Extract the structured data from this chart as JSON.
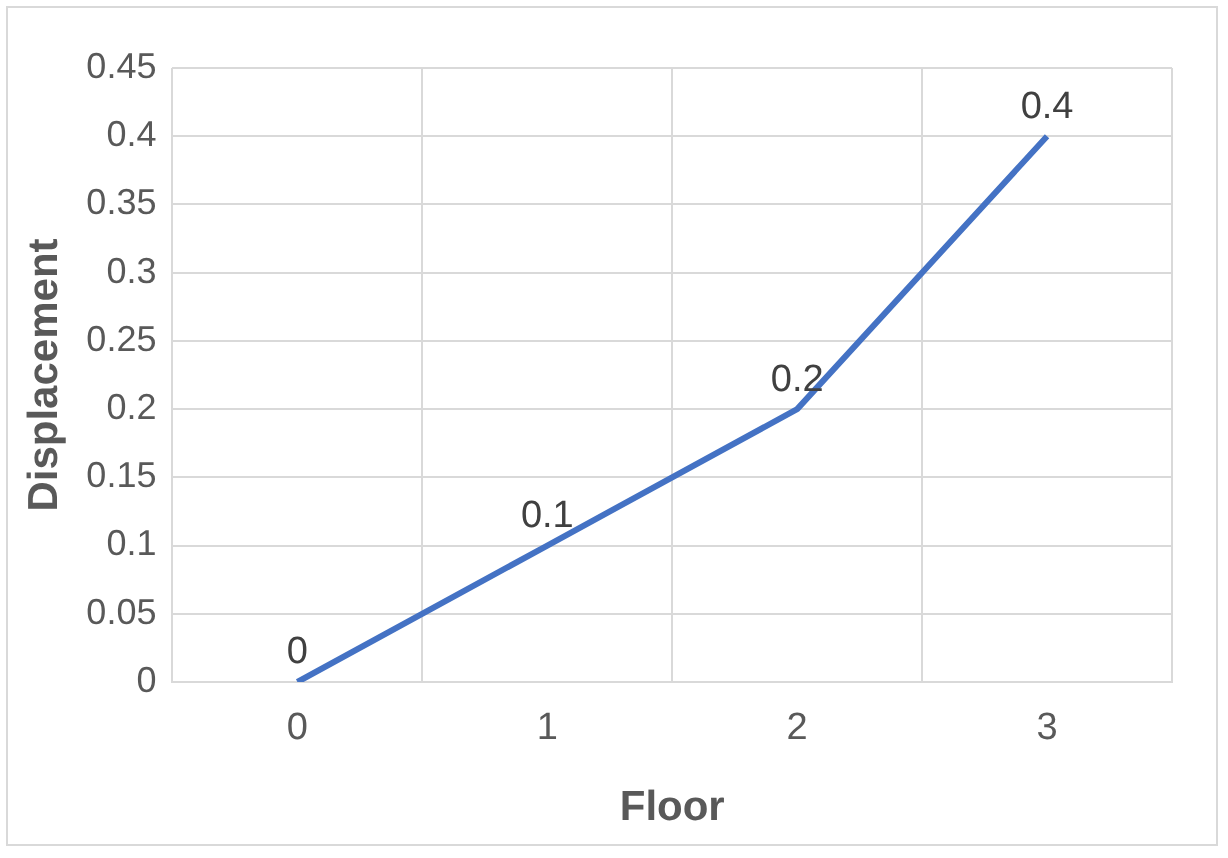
{
  "chart_data": {
    "type": "line",
    "xlabel": "Floor",
    "ylabel": "Displacement",
    "categories": [
      "0",
      "1",
      "2",
      "3"
    ],
    "series": [
      {
        "color": "#4472c4",
        "values": [
          0,
          0.1,
          0.2,
          0.4
        ]
      }
    ],
    "ylim": [
      0,
      0.45
    ],
    "yticks": [
      0,
      0.05,
      0.1,
      0.15,
      0.2,
      0.25,
      0.3,
      0.35,
      0.4,
      0.45
    ],
    "grid": true,
    "data_labels": true,
    "marker": "none",
    "line_style": "solid"
  }
}
